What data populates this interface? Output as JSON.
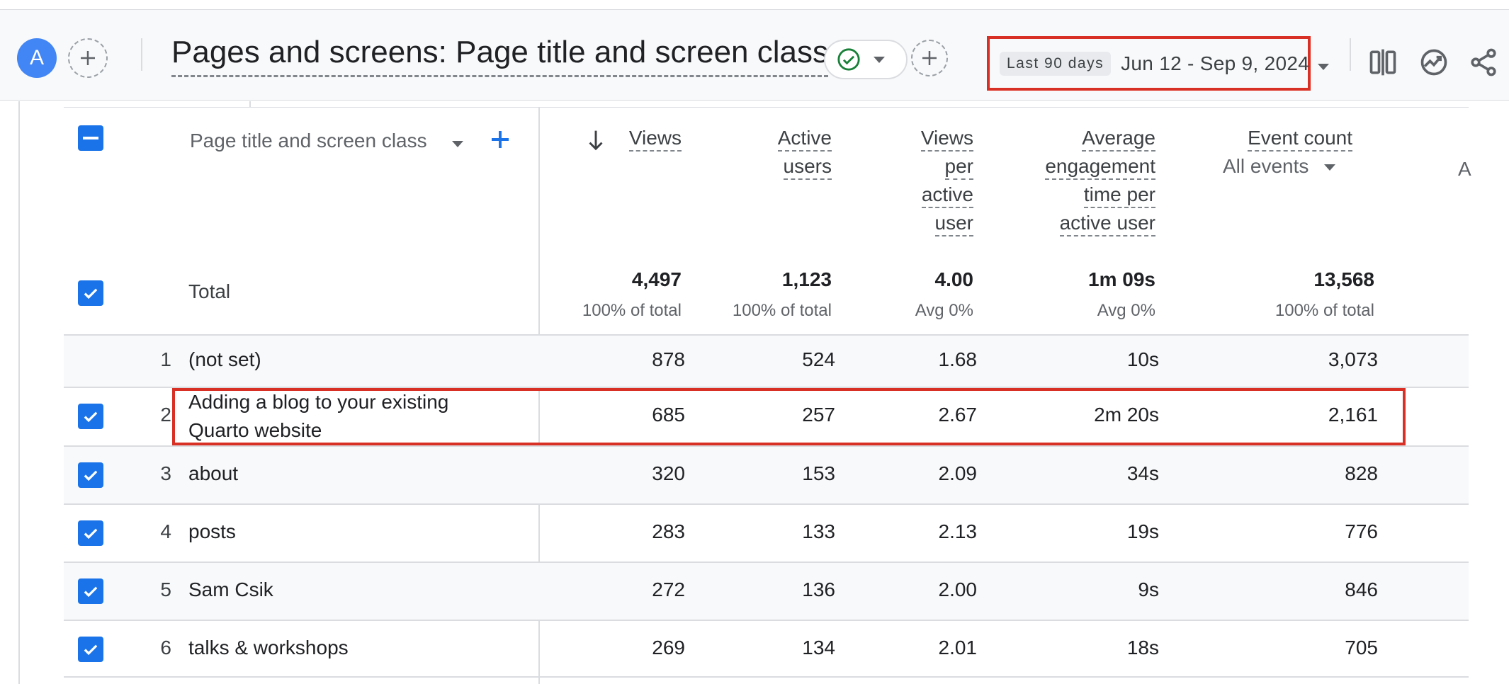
{
  "header": {
    "avatar_letter": "A",
    "title": "Pages and screens: Page title and screen class",
    "date_chip": "Last 90 days",
    "date_range": "Jun 12 - Sep 9, 2024"
  },
  "icons": {
    "add": "plus-icon",
    "status": "check-circle-icon",
    "compare": "compare-icon",
    "insights": "insights-icon",
    "share": "share-icon",
    "sort": "arrow-down-icon"
  },
  "colors": {
    "accent": "#1a73e8",
    "avatar": "#4285f4",
    "highlight": "#d93025",
    "status_check": "#188038"
  },
  "table": {
    "dimension_header": "Page title and screen class",
    "columns": [
      {
        "lines": [
          "Views"
        ]
      },
      {
        "lines": [
          "Active",
          "users"
        ]
      },
      {
        "lines": [
          "Views",
          "per",
          "active",
          "user"
        ]
      },
      {
        "lines": [
          "Average",
          "engagement",
          "time per",
          "active user"
        ]
      },
      {
        "lines": [
          "Event count"
        ],
        "sub_select": "All events"
      }
    ],
    "cut_off_header": "A",
    "total": {
      "label": "Total",
      "values": [
        "4,497",
        "1,123",
        "4.00",
        "1m 09s",
        "13,568"
      ],
      "subs": [
        "100% of total",
        "100% of total",
        "Avg 0%",
        "Avg 0%",
        "100% of total"
      ]
    },
    "rows": [
      {
        "index": "1",
        "name": "(not set)",
        "checked": false,
        "values": [
          "878",
          "524",
          "1.68",
          "10s",
          "3,073"
        ]
      },
      {
        "index": "2",
        "name_line1": "Adding a blog to your existing",
        "name_line2": "Quarto website",
        "checked": true,
        "values": [
          "685",
          "257",
          "2.67",
          "2m 20s",
          "2,161"
        ]
      },
      {
        "index": "3",
        "name": "about",
        "checked": true,
        "values": [
          "320",
          "153",
          "2.09",
          "34s",
          "828"
        ]
      },
      {
        "index": "4",
        "name": "posts",
        "checked": true,
        "values": [
          "283",
          "133",
          "2.13",
          "19s",
          "776"
        ]
      },
      {
        "index": "5",
        "name": "Sam Csik",
        "checked": true,
        "values": [
          "272",
          "136",
          "2.00",
          "9s",
          "846"
        ]
      },
      {
        "index": "6",
        "name": "talks & workshops",
        "checked": true,
        "values": [
          "269",
          "134",
          "2.01",
          "18s",
          "705"
        ]
      }
    ]
  }
}
